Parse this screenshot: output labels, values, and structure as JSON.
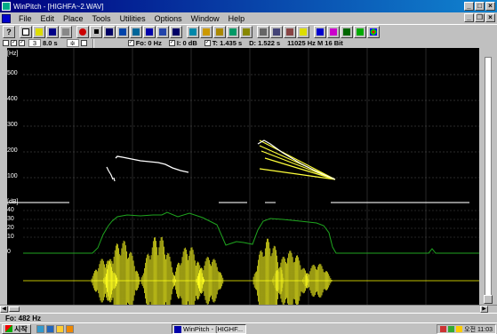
{
  "window": {
    "title": "WinPitch - [HIGHFA~2.WAV]"
  },
  "menu": [
    "File",
    "Edit",
    "Place",
    "Tools",
    "Utilities",
    "Options",
    "Window",
    "Help"
  ],
  "status": {
    "spin_value": "3",
    "duration": "8.0 s",
    "fo": "Fo: 0 Hz",
    "intensity": "I: 0 dB",
    "time": "T: 1.435 s",
    "delta": "D: 1.522 s",
    "format": "11025 Hz  M  16 Bit"
  },
  "axis": {
    "hz_unit": "[Hz]",
    "hz_ticks": [
      "500",
      "400",
      "300",
      "200",
      "100"
    ],
    "db_unit": "[dB]",
    "db_ticks": [
      "40",
      "30",
      "20",
      "10",
      "0"
    ]
  },
  "footer": {
    "fo_readout": "Fo: 482 Hz"
  },
  "taskbar": {
    "start_label": "시작",
    "task_label": "WinPitch - [HIGHF...",
    "clock": "오전 11:03"
  }
}
